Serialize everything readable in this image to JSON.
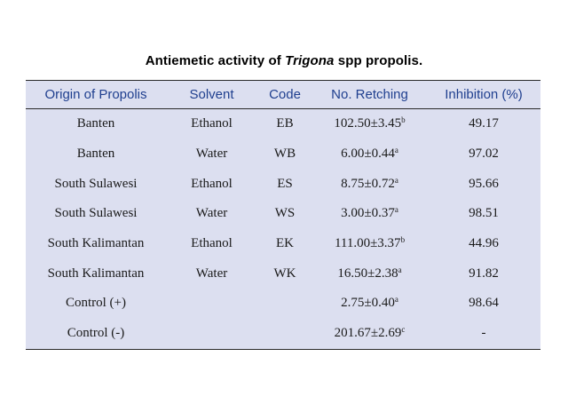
{
  "caption": {
    "prefix": "Antiemetic activity of ",
    "italic": "Trigona",
    "suffix": " spp propolis."
  },
  "table": {
    "headers": [
      "Origin of Propolis",
      "Solvent",
      "Code",
      "No. Retching",
      "Inhibition (%)"
    ],
    "rows": [
      {
        "origin": "Banten",
        "solvent": "Ethanol",
        "code": "EB",
        "retching": "102.50±3.45",
        "sup": "b",
        "inhibition": "49.17"
      },
      {
        "origin": "Banten",
        "solvent": "Water",
        "code": "WB",
        "retching": "6.00±0.44",
        "sup": "a",
        "inhibition": "97.02"
      },
      {
        "origin": "South Sulawesi",
        "solvent": "Ethanol",
        "code": "ES",
        "retching": "8.75±0.72",
        "sup": "a",
        "inhibition": "95.66"
      },
      {
        "origin": "South Sulawesi",
        "solvent": "Water",
        "code": "WS",
        "retching": "3.00±0.37",
        "sup": "a",
        "inhibition": "98.51"
      },
      {
        "origin": "South Kalimantan",
        "solvent": "Ethanol",
        "code": "EK",
        "retching": "111.00±3.37",
        "sup": "b",
        "inhibition": "44.96"
      },
      {
        "origin": "South Kalimantan",
        "solvent": "Water",
        "code": "WK",
        "retching": "16.50±2.38",
        "sup": "a",
        "inhibition": "91.82"
      },
      {
        "origin": "Control (+)",
        "solvent": "",
        "code": "",
        "retching": "2.75±0.40",
        "sup": "a",
        "inhibition": "98.64"
      },
      {
        "origin": "Control (-)",
        "solvent": "",
        "code": "",
        "retching": "201.67±2.69",
        "sup": "c",
        "inhibition": "-"
      }
    ]
  },
  "colors": {
    "table_background": "#dcdff0",
    "header_text": "#1f3f8f",
    "rule": "#2a2a2a"
  }
}
